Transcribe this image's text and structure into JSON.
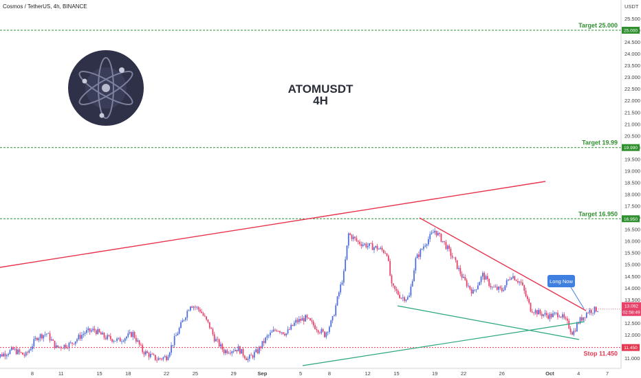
{
  "header": {
    "symbol_line": "Cosmos / TetherUS, 4h, BINANCE",
    "currency": "USDT"
  },
  "title_lines": [
    "ATOMUSDT",
    "4H"
  ],
  "logo": {
    "name": "cosmos-atom-logo",
    "bg_color": "#2e3148",
    "ring_color": "#6f7391"
  },
  "colors": {
    "bull": "#4e6fe0",
    "bear": "#e8426a",
    "red_line": "#e8334d",
    "green_line": "#26a67a",
    "target": "#2f8f2f",
    "stop": "#e53950",
    "callout": "#3f7fe0"
  },
  "annotations": [
    {
      "label": "Target 25.000",
      "value": 25.0,
      "kind": "target",
      "tag": "25.000"
    },
    {
      "label": "Target 19.99",
      "value": 19.99,
      "kind": "target",
      "tag": "19.990"
    },
    {
      "label": "Target 16.950",
      "value": 16.95,
      "kind": "target",
      "tag": "16.950"
    },
    {
      "label": "Stop 11.450",
      "value": 11.45,
      "kind": "stop",
      "tag": "11.450"
    }
  ],
  "price_tag": {
    "price": "13.092",
    "countdown": "02:58:49",
    "value": 13.092
  },
  "callout": {
    "label": "Long Now"
  },
  "chart_data": {
    "type": "candlestick",
    "y_axis": {
      "position": "right",
      "ylim": [
        10.9,
        26.1
      ],
      "ticks": [
        "11.000",
        "11.500",
        "12.000",
        "12.500",
        "13.000",
        "13.500",
        "14.000",
        "14.500",
        "15.000",
        "15.500",
        "16.000",
        "16.500",
        "17.000",
        "17.500",
        "18.000",
        "18.500",
        "19.000",
        "19.500",
        "20.000",
        "20.500",
        "21.000",
        "21.500",
        "22.000",
        "22.500",
        "23.000",
        "23.500",
        "24.000",
        "24.500",
        "25.000",
        "25.500",
        "26.000"
      ]
    },
    "x_axis": {
      "labels": [
        {
          "text": "8",
          "day": 8,
          "bold": false
        },
        {
          "text": "11",
          "day": 11,
          "bold": false
        },
        {
          "text": "15",
          "day": 15,
          "bold": false
        },
        {
          "text": "18",
          "day": 18,
          "bold": false
        },
        {
          "text": "22",
          "day": 22,
          "bold": false
        },
        {
          "text": "25",
          "day": 25,
          "bold": false
        },
        {
          "text": "29",
          "day": 29,
          "bold": false
        },
        {
          "text": "Sep",
          "day": 32,
          "bold": true
        },
        {
          "text": "5",
          "day": 36,
          "bold": false
        },
        {
          "text": "8",
          "day": 39,
          "bold": false
        },
        {
          "text": "12",
          "day": 43,
          "bold": false
        },
        {
          "text": "15",
          "day": 46,
          "bold": false
        },
        {
          "text": "19",
          "day": 50,
          "bold": false
        },
        {
          "text": "22",
          "day": 53,
          "bold": false
        },
        {
          "text": "26",
          "day": 57,
          "bold": false
        },
        {
          "text": "Oct",
          "day": 62,
          "bold": true
        },
        {
          "text": "4",
          "day": 65,
          "bold": false
        },
        {
          "text": "7",
          "day": 68,
          "bold": false
        }
      ]
    },
    "price_path": [
      [
        4,
        11.0
      ],
      [
        6,
        11.35
      ],
      [
        7.3,
        11.1
      ],
      [
        8.5,
        11.9
      ],
      [
        9.5,
        12.05
      ],
      [
        10.5,
        11.45
      ],
      [
        12,
        11.6
      ],
      [
        13.5,
        12.1
      ],
      [
        14.5,
        12.2
      ],
      [
        15.5,
        11.9
      ],
      [
        17,
        11.75
      ],
      [
        18.5,
        12.05
      ],
      [
        19.5,
        11.3
      ],
      [
        21,
        10.95
      ],
      [
        22,
        11.05
      ],
      [
        23.5,
        12.4
      ],
      [
        24.5,
        13.3
      ],
      [
        25.5,
        13.05
      ],
      [
        26.5,
        12.35
      ],
      [
        27,
        11.85
      ],
      [
        28,
        11.3
      ],
      [
        29.5,
        11.4
      ],
      [
        30.5,
        10.95
      ],
      [
        31.5,
        11.3
      ],
      [
        32.5,
        11.9
      ],
      [
        33.5,
        12.25
      ],
      [
        34.5,
        12.05
      ],
      [
        35.5,
        12.55
      ],
      [
        36.5,
        12.7
      ],
      [
        37.5,
        12.35
      ],
      [
        38.5,
        12.0
      ],
      [
        39.3,
        12.6
      ],
      [
        40.0,
        13.8
      ],
      [
        40.5,
        14.6
      ],
      [
        41.0,
        16.3
      ],
      [
        42.0,
        15.95
      ],
      [
        43.0,
        15.8
      ],
      [
        44.0,
        15.7
      ],
      [
        45.0,
        15.5
      ],
      [
        45.5,
        14.05
      ],
      [
        46.5,
        13.6
      ],
      [
        47.3,
        13.55
      ],
      [
        48.0,
        15.2
      ],
      [
        49.0,
        15.9
      ],
      [
        50.0,
        16.45
      ],
      [
        51.0,
        15.9
      ],
      [
        52.0,
        15.2
      ],
      [
        53.0,
        14.35
      ],
      [
        54.0,
        13.8
      ],
      [
        55.0,
        14.55
      ],
      [
        56.0,
        14.0
      ],
      [
        57.0,
        13.9
      ],
      [
        58.0,
        14.55
      ],
      [
        59.0,
        14.2
      ],
      [
        60.0,
        13.1
      ],
      [
        61.0,
        12.9
      ],
      [
        62.0,
        12.8
      ],
      [
        63.0,
        12.9
      ],
      [
        63.8,
        12.5
      ],
      [
        64.4,
        12.05
      ],
      [
        65.0,
        12.55
      ],
      [
        66.0,
        13.0
      ],
      [
        67.0,
        13.09
      ]
    ]
  }
}
